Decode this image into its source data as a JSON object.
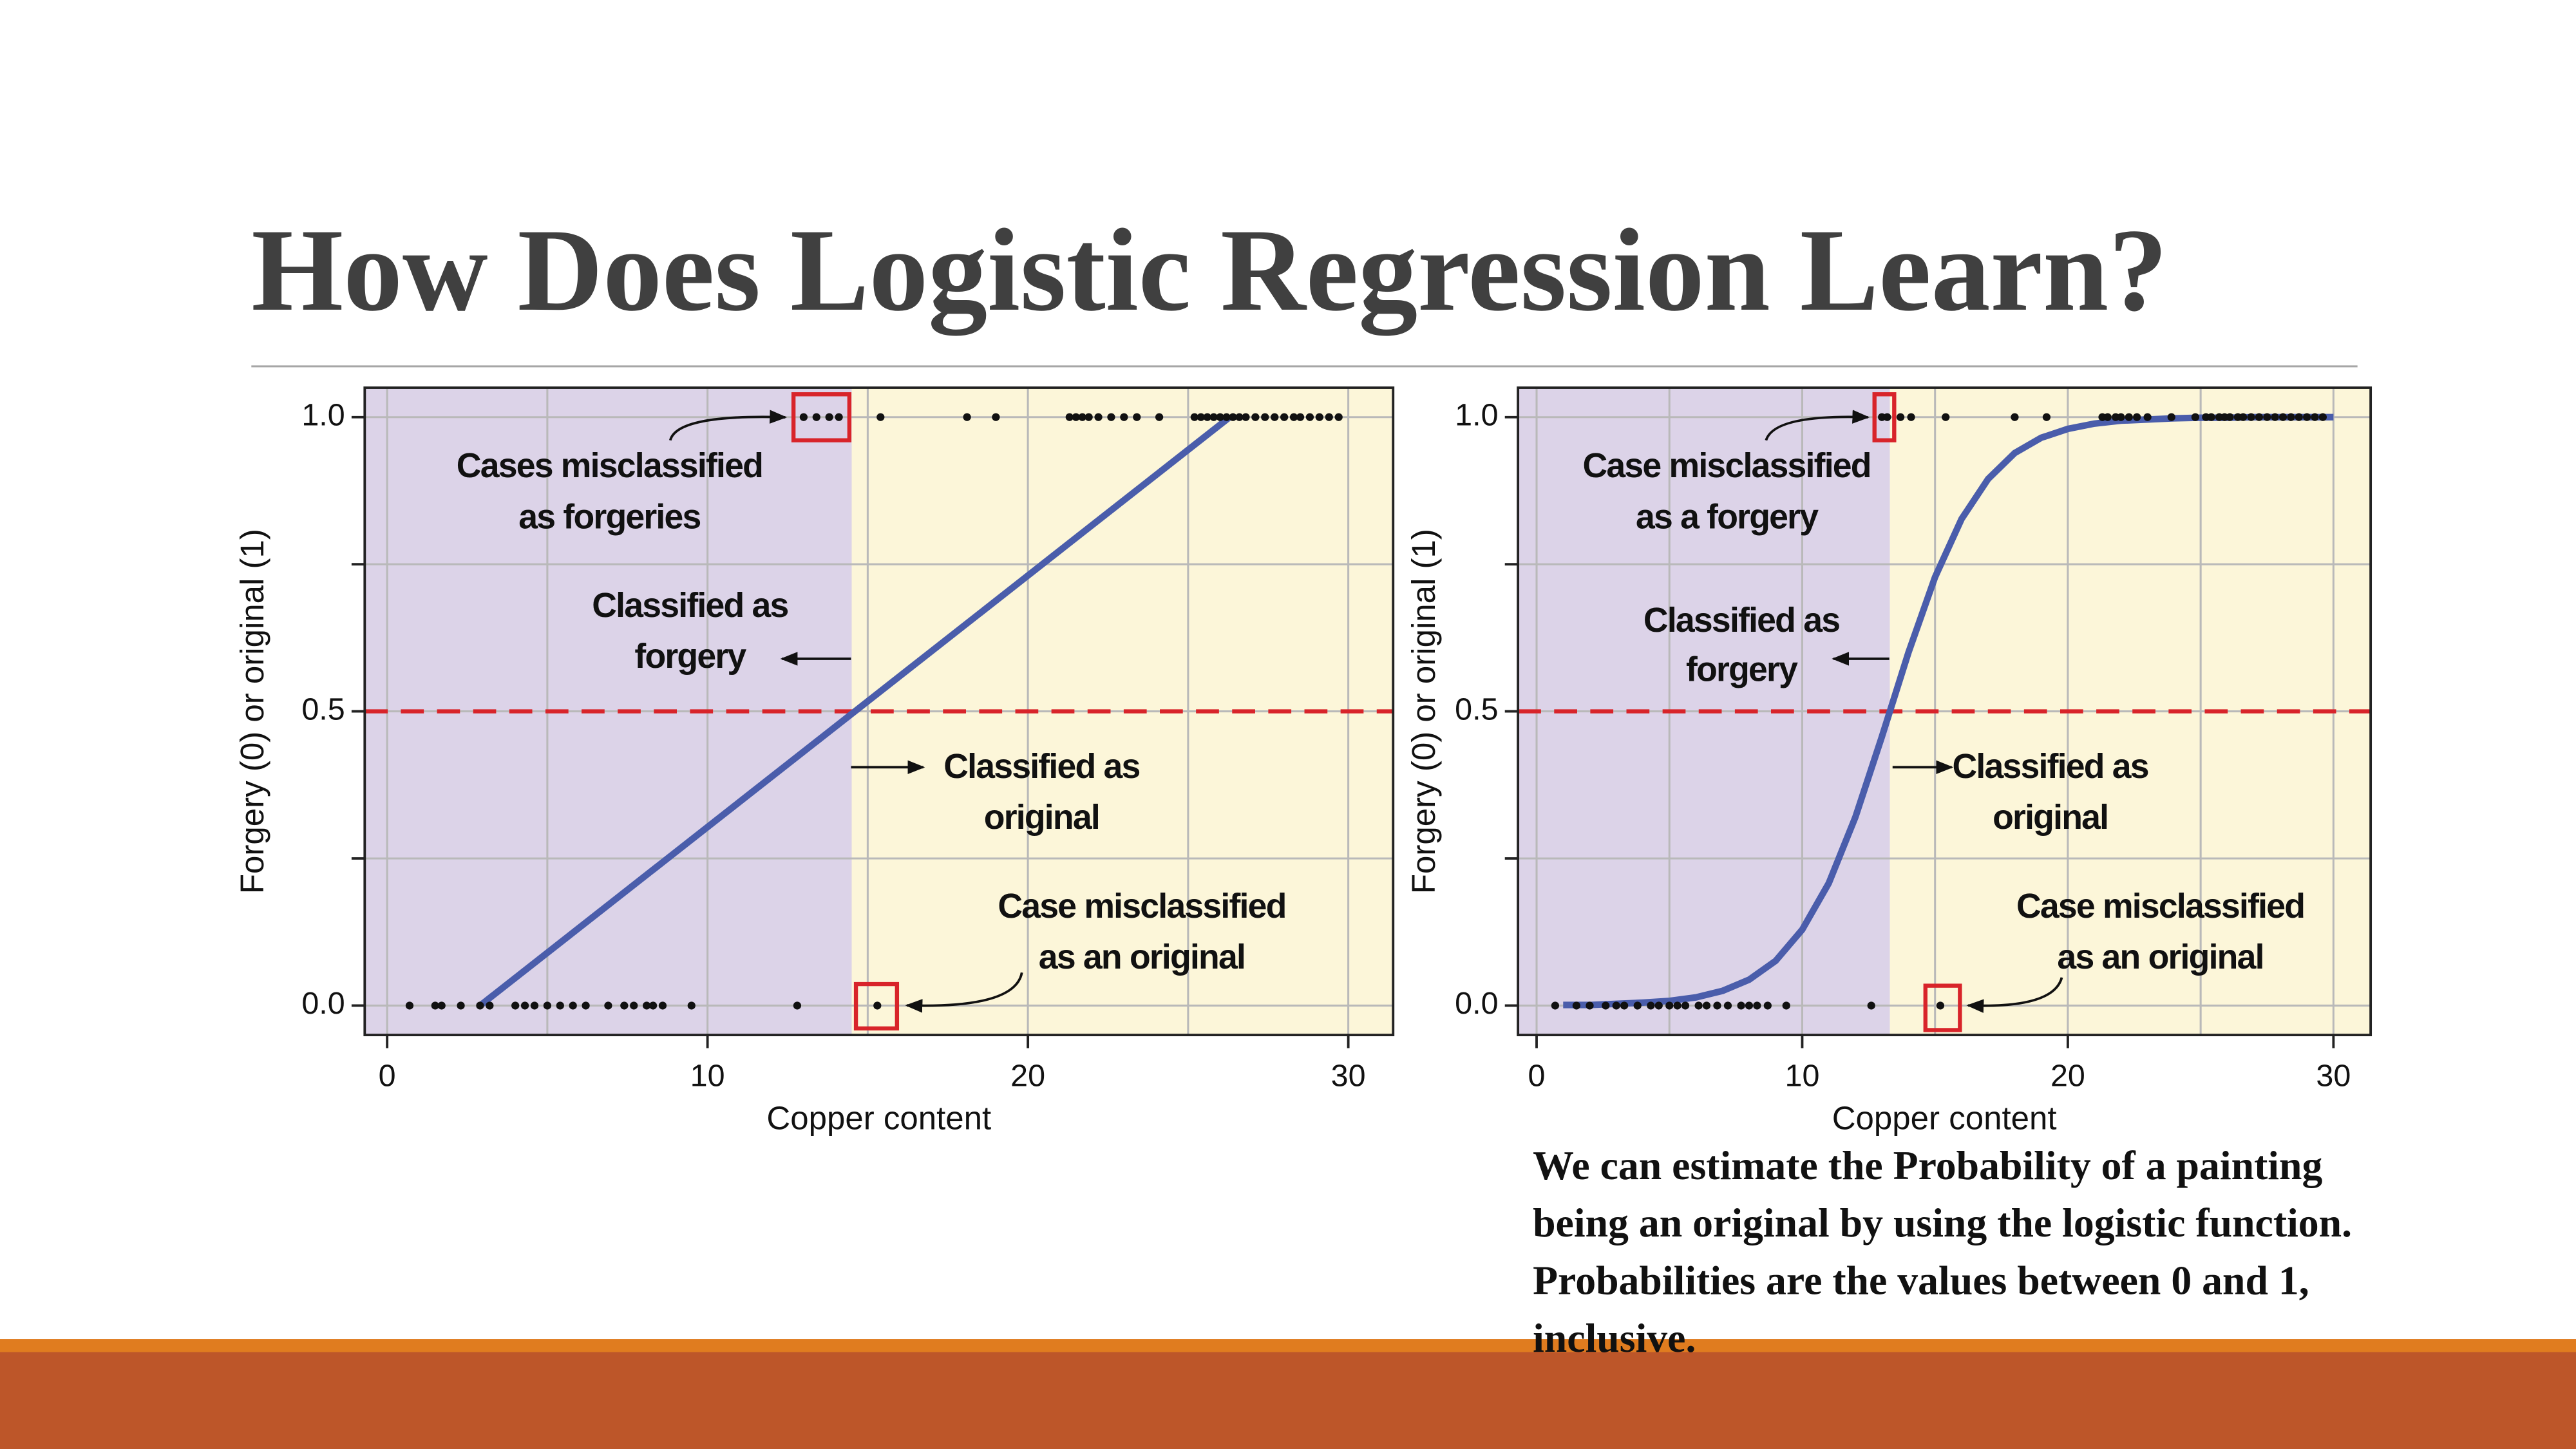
{
  "slide": {
    "title": "How Does Logistic Regression Learn?",
    "caption": [
      "We can estimate the Probability of  a painting",
      "being an original by using the logistic function.",
      "Probabilities are the values between 0 and 1,",
      "inclusive."
    ]
  },
  "chart_data": [
    {
      "type": "scatter",
      "xlabel": "Copper content",
      "ylabel": "Forgery (0) or original (1)",
      "xlim": [
        -0.7,
        31.4
      ],
      "ylim": [
        -0.05,
        1.05
      ],
      "xticks": [
        0,
        10,
        20,
        30
      ],
      "xminor": [
        5,
        15,
        25
      ],
      "yticks": [
        {
          "value": 0,
          "label": "0.0"
        },
        {
          "value": 0.5,
          "label": "0.5"
        },
        {
          "value": 1,
          "label": "1.0"
        }
      ],
      "yminor": [
        0.25,
        0.75
      ],
      "grid": true,
      "threshold": 0.5,
      "threshold_color": "#d8242a",
      "decision_x": 14.5,
      "region_colors": [
        "#dcd3e8",
        "#fcf6d9"
      ],
      "point_color": "#111111",
      "groups": [
        {
          "y": 0,
          "x": [
            0.7,
            1.5,
            1.7,
            2.3,
            2.9,
            3.2,
            4.0,
            4.3,
            4.6,
            5.0,
            5.4,
            5.8,
            6.2,
            6.9,
            7.4,
            7.7,
            8.1,
            8.3,
            8.6,
            9.5,
            12.8,
            15.3
          ]
        },
        {
          "y": 1,
          "x": [
            13.0,
            13.4,
            13.8,
            14.1,
            15.4,
            18.1,
            19.0,
            21.3,
            21.5,
            21.7,
            21.9,
            22.2,
            22.6,
            23.0,
            23.4,
            24.1,
            25.2,
            25.4,
            25.6,
            25.8,
            26.0,
            26.2,
            26.4,
            26.6,
            26.8,
            27.1,
            27.4,
            27.7,
            28.0,
            28.3,
            28.5,
            28.8,
            29.1,
            29.4,
            29.7
          ]
        }
      ],
      "fit": {
        "color": "#4a5dab",
        "x": [
          2.9,
          26.3
        ],
        "y": [
          0,
          1
        ]
      },
      "annotations": [
        [
          "Cases misclassified",
          "as forgeries"
        ],
        [
          "Classified as",
          "forgery"
        ],
        [
          "Classified as",
          "original"
        ],
        [
          "Case misclassified",
          "as an original"
        ]
      ]
    },
    {
      "type": "scatter",
      "xlabel": "Copper content",
      "ylabel": "Forgery (0) or original (1)",
      "xlim": [
        -0.7,
        31.4
      ],
      "ylim": [
        -0.05,
        1.05
      ],
      "xticks": [
        0,
        10,
        20,
        30
      ],
      "xminor": [
        5,
        15,
        25
      ],
      "yticks": [
        {
          "value": 0,
          "label": "0.0"
        },
        {
          "value": 0.5,
          "label": "0.5"
        },
        {
          "value": 1,
          "label": "1.0"
        }
      ],
      "yminor": [
        0.25,
        0.75
      ],
      "grid": true,
      "threshold": 0.5,
      "threshold_color": "#d8242a",
      "decision_x": 13.3,
      "region_colors": [
        "#dcd3e8",
        "#fcf6d9"
      ],
      "point_color": "#111111",
      "groups": [
        {
          "y": 0,
          "x": [
            0.7,
            1.5,
            2.0,
            2.6,
            3.0,
            3.3,
            3.8,
            4.3,
            4.6,
            5.0,
            5.3,
            5.6,
            6.1,
            6.4,
            6.8,
            7.2,
            7.7,
            8.0,
            8.3,
            8.7,
            9.4,
            12.6,
            15.2
          ]
        },
        {
          "y": 1,
          "x": [
            13.0,
            13.2,
            13.7,
            14.1,
            15.4,
            18.0,
            19.2,
            21.3,
            21.5,
            21.8,
            22.0,
            22.3,
            22.6,
            23.0,
            23.9,
            24.8,
            25.2,
            25.4,
            25.7,
            25.9,
            26.1,
            26.4,
            26.6,
            26.9,
            27.2,
            27.5,
            27.8,
            28.1,
            28.4,
            28.7,
            29.0,
            29.3,
            29.6
          ]
        }
      ],
      "fit": {
        "color": "#4a5dab",
        "x": [
          1,
          2,
          3,
          4,
          5,
          6,
          7,
          8,
          9,
          10,
          11,
          12,
          13,
          14,
          15,
          16,
          17,
          18,
          19,
          20,
          21,
          22,
          23,
          24,
          25,
          26,
          27,
          28,
          29,
          30
        ],
        "y": [
          0.001,
          0.001,
          0.003,
          0.005,
          0.008,
          0.014,
          0.025,
          0.044,
          0.076,
          0.129,
          0.208,
          0.32,
          0.457,
          0.6,
          0.728,
          0.827,
          0.895,
          0.939,
          0.965,
          0.98,
          0.989,
          0.994,
          0.996,
          0.998,
          0.999,
          0.999,
          1,
          1,
          1,
          1
        ]
      },
      "annotations": [
        [
          "Case misclassified",
          "as a forgery"
        ],
        [
          "Classified as",
          "forgery"
        ],
        [
          "Classified as",
          "original"
        ],
        [
          "Case misclassified",
          "as an original"
        ]
      ]
    }
  ]
}
